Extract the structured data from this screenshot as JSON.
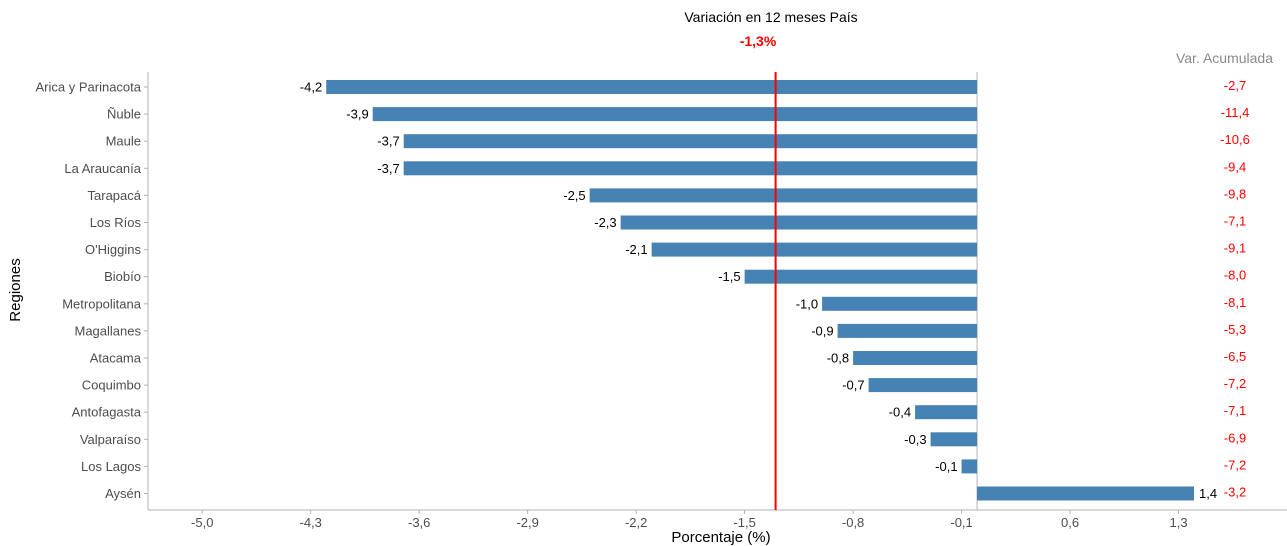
{
  "colors": {
    "bar": "#4682b4",
    "accent": "#ff0000",
    "axis": "#b3b3b3",
    "tick_text": "#4d4d4d",
    "header_text": "#8a8a8a"
  },
  "chart_data": {
    "type": "bar",
    "orientation": "horizontal",
    "title": "Variación en 12 meses País",
    "subtitle": "-1,3%",
    "reference_line": -1.3,
    "xlabel": "Porcentaje (%)",
    "ylabel": "Regiones",
    "xlim": [
      -5.35,
      2.0
    ],
    "xticks": [
      -5.0,
      -4.3,
      -3.6,
      -2.9,
      -2.2,
      -1.5,
      -0.8,
      -0.1,
      0.6,
      1.3
    ],
    "xtick_labels": [
      "-5,0",
      "-4,3",
      "-3,6",
      "-2,9",
      "-2,2",
      "-1,5",
      "-0,8",
      "-0,1",
      "0,6",
      "1,3"
    ],
    "grid": false,
    "secondary_header": "Var. Acumulada",
    "categories": [
      "Arica y Parinacota",
      "Ñuble",
      "Maule",
      "La Araucanía",
      "Tarapacá",
      "Los Ríos",
      "O'Higgins",
      "Biobío",
      "Metropolitana",
      "Magallanes",
      "Atacama",
      "Coquimbo",
      "Antofagasta",
      "Valparaíso",
      "Los Lagos",
      "Aysén"
    ],
    "values": [
      -4.2,
      -3.9,
      -3.7,
      -3.7,
      -2.5,
      -2.3,
      -2.1,
      -1.5,
      -1.0,
      -0.9,
      -0.8,
      -0.7,
      -0.4,
      -0.3,
      -0.1,
      1.4
    ],
    "value_labels": [
      "-4,2",
      "-3,9",
      "-3,7",
      "-3,7",
      "-2,5",
      "-2,3",
      "-2,1",
      "-1,5",
      "-1,0",
      "-0,9",
      "-0,8",
      "-0,7",
      "-0,4",
      "-0,3",
      "-0,1",
      "1,4"
    ],
    "cumulative_labels": [
      "-2,7",
      "-11,4",
      "-10,6",
      "-9,4",
      "-9,8",
      "-7,1",
      "-9,1",
      "-8,0",
      "-8,1",
      "-5,3",
      "-6,5",
      "-7,2",
      "-7,1",
      "-6,9",
      "-7,2",
      "-3,2"
    ]
  }
}
